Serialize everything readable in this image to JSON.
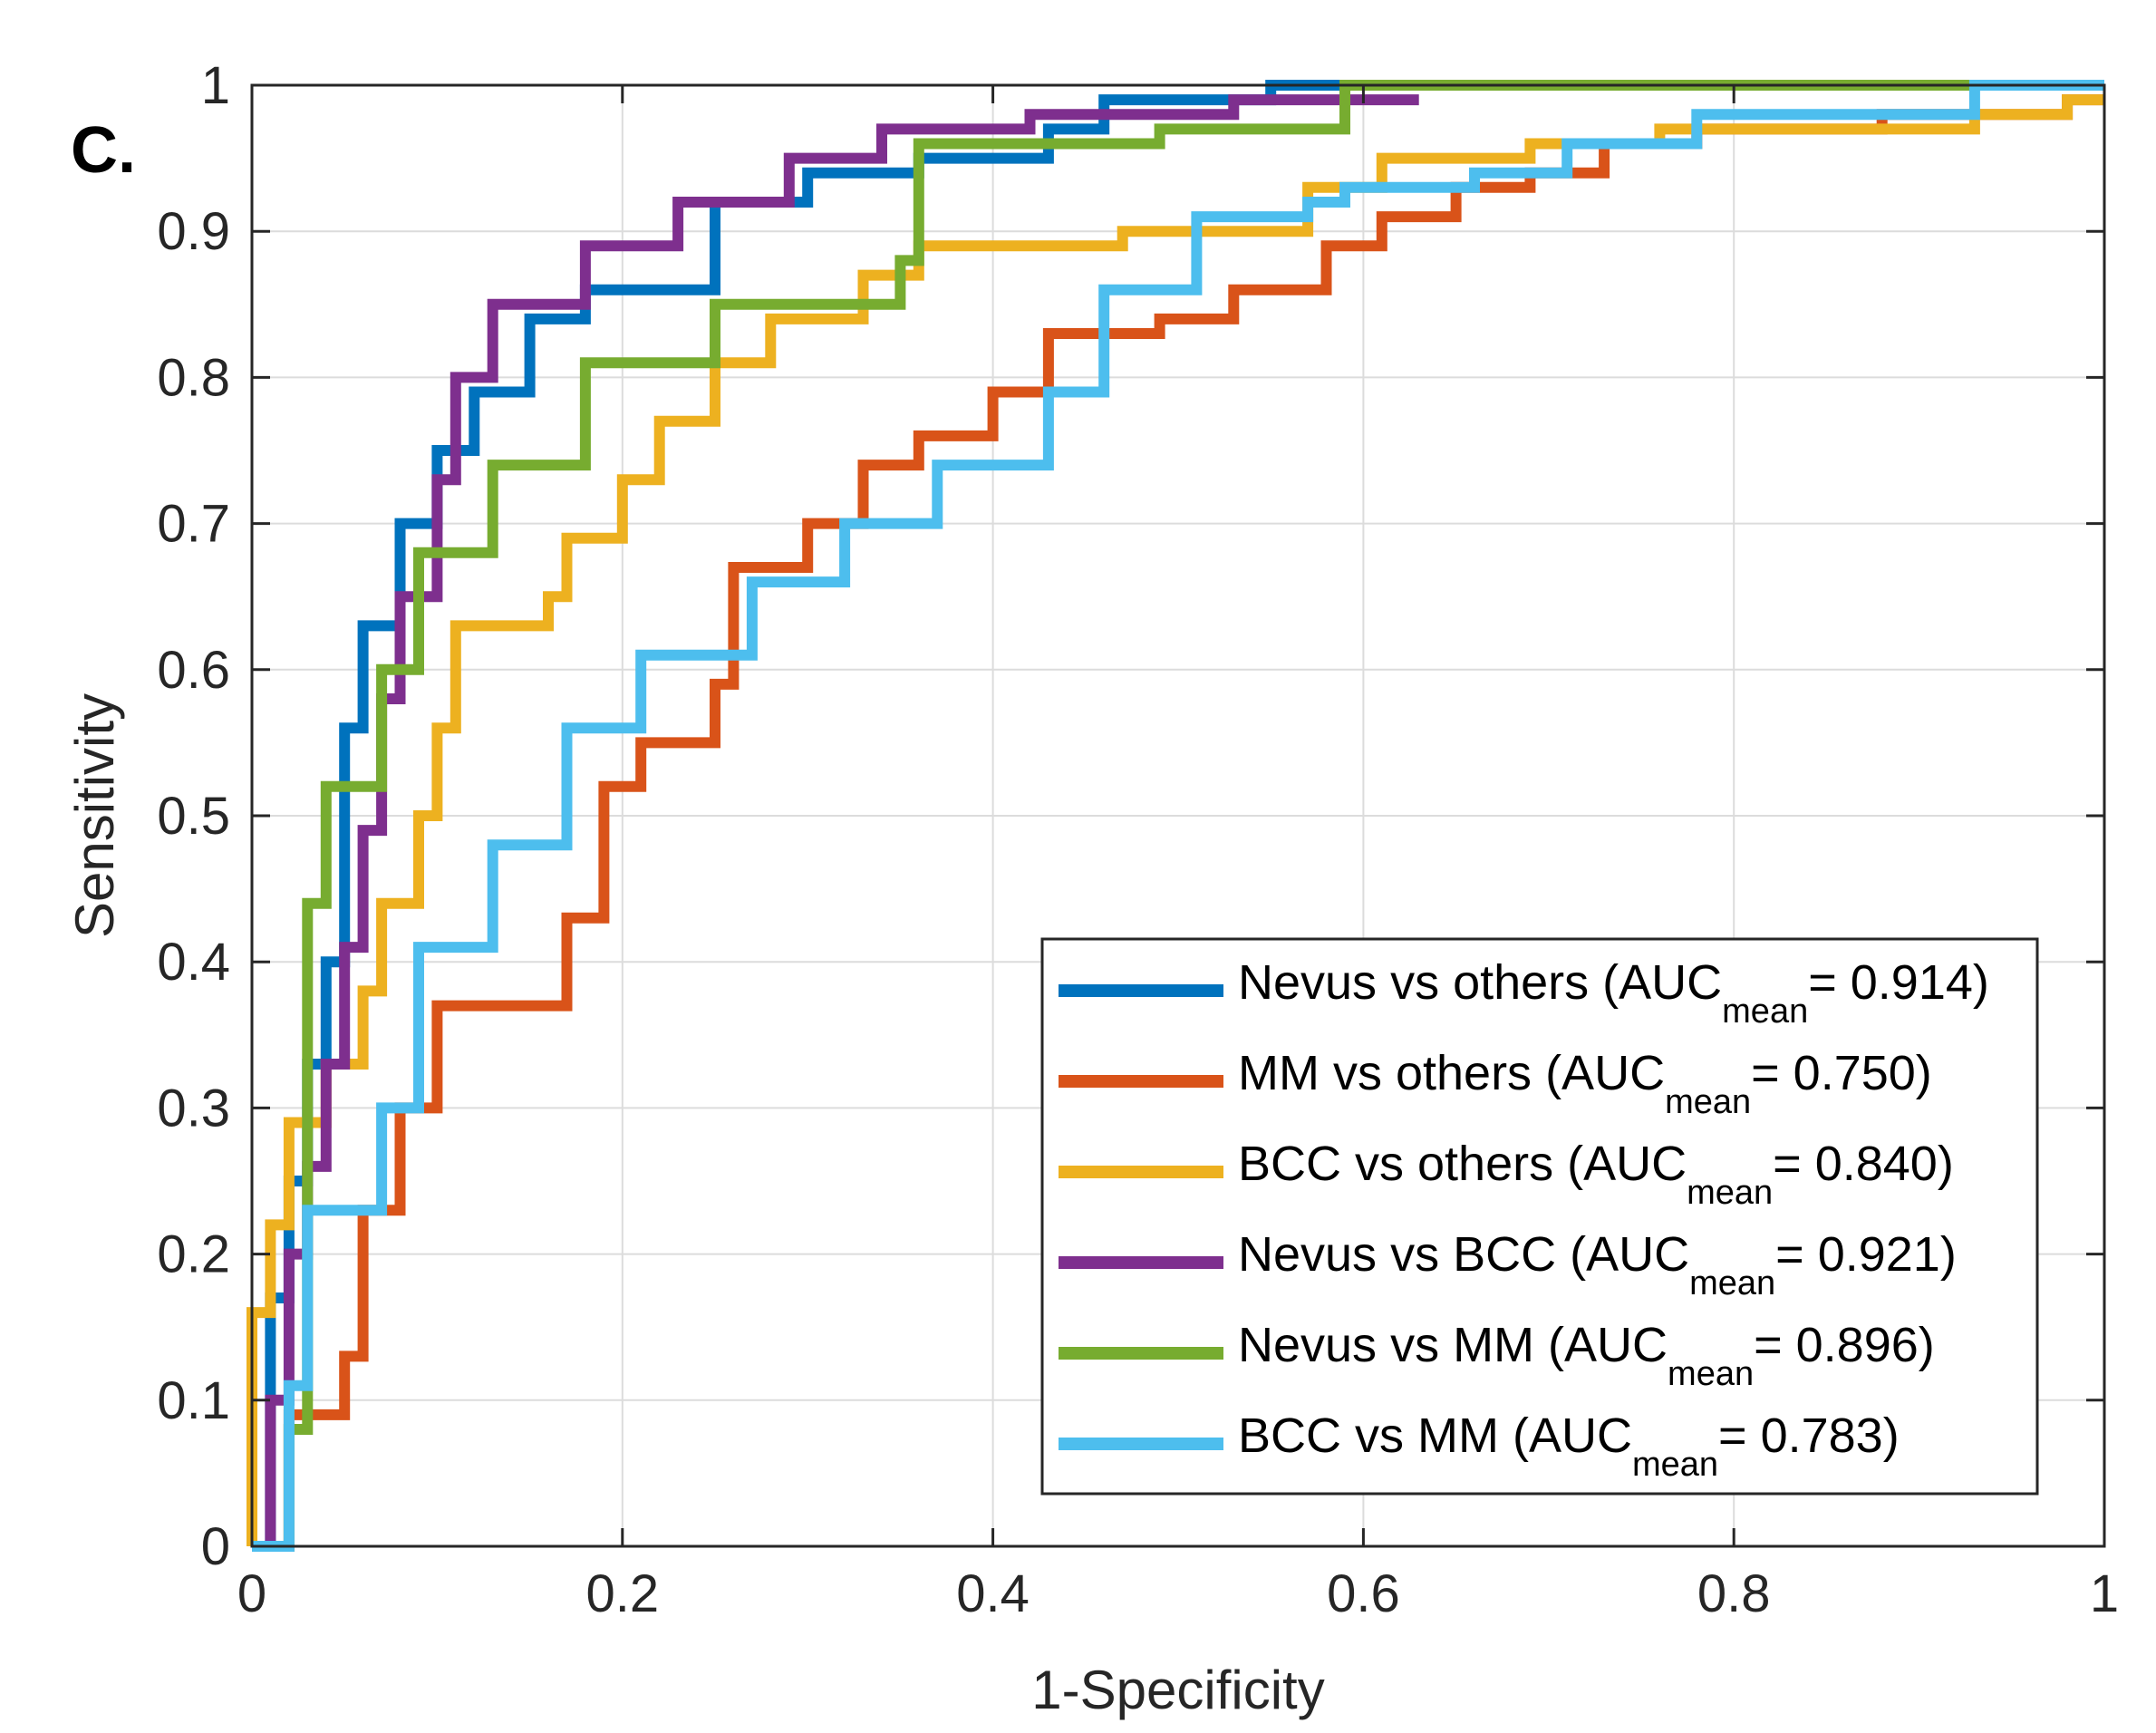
{
  "panel_label": "C.",
  "chart_data": {
    "type": "line",
    "title": "",
    "xlabel": "1-Specificity",
    "ylabel": "Sensitivity",
    "xlim": [
      0,
      1
    ],
    "ylim": [
      0,
      1
    ],
    "xticks": [
      "0",
      "0.2",
      "0.4",
      "0.6",
      "0.8",
      "1"
    ],
    "yticks": [
      "0",
      "0.1",
      "0.2",
      "0.3",
      "0.4",
      "0.5",
      "0.6",
      "0.7",
      "0.8",
      "0.9",
      "1"
    ],
    "grid": true,
    "legend_position": "bottom-right",
    "series": [
      {
        "name": "Nevus vs others",
        "auc_label": "AUC",
        "auc_sub": "mean",
        "auc_value": "= 0.914)",
        "color": "#0072BD",
        "points": [
          [
            0,
            0
          ],
          [
            0.01,
            0
          ],
          [
            0.01,
            0.17
          ],
          [
            0.02,
            0.17
          ],
          [
            0.02,
            0.25
          ],
          [
            0.03,
            0.25
          ],
          [
            0.03,
            0.33
          ],
          [
            0.04,
            0.33
          ],
          [
            0.04,
            0.4
          ],
          [
            0.05,
            0.4
          ],
          [
            0.05,
            0.56
          ],
          [
            0.06,
            0.56
          ],
          [
            0.06,
            0.63
          ],
          [
            0.08,
            0.63
          ],
          [
            0.08,
            0.7
          ],
          [
            0.1,
            0.7
          ],
          [
            0.1,
            0.75
          ],
          [
            0.12,
            0.75
          ],
          [
            0.12,
            0.79
          ],
          [
            0.15,
            0.79
          ],
          [
            0.15,
            0.84
          ],
          [
            0.18,
            0.84
          ],
          [
            0.18,
            0.86
          ],
          [
            0.25,
            0.86
          ],
          [
            0.25,
            0.92
          ],
          [
            0.3,
            0.92
          ],
          [
            0.3,
            0.94
          ],
          [
            0.36,
            0.94
          ],
          [
            0.36,
            0.95
          ],
          [
            0.43,
            0.95
          ],
          [
            0.43,
            0.97
          ],
          [
            0.46,
            0.97
          ],
          [
            0.46,
            0.99
          ],
          [
            0.55,
            0.99
          ],
          [
            0.55,
            1
          ],
          [
            1,
            1
          ]
        ]
      },
      {
        "name": "MM vs others",
        "auc_label": "AUC",
        "auc_sub": "mean",
        "auc_value": "= 0.750)",
        "color": "#D95319",
        "points": [
          [
            0,
            0
          ],
          [
            0.02,
            0
          ],
          [
            0.02,
            0.09
          ],
          [
            0.05,
            0.09
          ],
          [
            0.05,
            0.13
          ],
          [
            0.06,
            0.13
          ],
          [
            0.06,
            0.23
          ],
          [
            0.08,
            0.23
          ],
          [
            0.08,
            0.3
          ],
          [
            0.1,
            0.3
          ],
          [
            0.1,
            0.37
          ],
          [
            0.17,
            0.37
          ],
          [
            0.17,
            0.43
          ],
          [
            0.19,
            0.43
          ],
          [
            0.19,
            0.52
          ],
          [
            0.21,
            0.52
          ],
          [
            0.21,
            0.55
          ],
          [
            0.25,
            0.55
          ],
          [
            0.25,
            0.59
          ],
          [
            0.26,
            0.59
          ],
          [
            0.26,
            0.67
          ],
          [
            0.3,
            0.67
          ],
          [
            0.3,
            0.7
          ],
          [
            0.33,
            0.7
          ],
          [
            0.33,
            0.74
          ],
          [
            0.36,
            0.74
          ],
          [
            0.36,
            0.76
          ],
          [
            0.4,
            0.76
          ],
          [
            0.4,
            0.79
          ],
          [
            0.43,
            0.79
          ],
          [
            0.43,
            0.83
          ],
          [
            0.49,
            0.83
          ],
          [
            0.49,
            0.84
          ],
          [
            0.53,
            0.84
          ],
          [
            0.53,
            0.86
          ],
          [
            0.58,
            0.86
          ],
          [
            0.58,
            0.89
          ],
          [
            0.61,
            0.89
          ],
          [
            0.61,
            0.91
          ],
          [
            0.65,
            0.91
          ],
          [
            0.65,
            0.93
          ],
          [
            0.69,
            0.93
          ],
          [
            0.69,
            0.94
          ],
          [
            0.73,
            0.94
          ],
          [
            0.73,
            0.96
          ],
          [
            0.78,
            0.96
          ],
          [
            0.78,
            0.97
          ],
          [
            0.88,
            0.97
          ],
          [
            0.88,
            0.98
          ],
          [
            0.98,
            0.98
          ],
          [
            0.98,
            0.99
          ],
          [
            1,
            0.99
          ]
        ]
      },
      {
        "name": "BCC vs others",
        "auc_label": "AUC",
        "auc_sub": "mean",
        "auc_value": "= 0.840)",
        "color": "#EDB120",
        "points": [
          [
            0,
            0
          ],
          [
            0,
            0.16
          ],
          [
            0.01,
            0.16
          ],
          [
            0.01,
            0.22
          ],
          [
            0.02,
            0.22
          ],
          [
            0.02,
            0.29
          ],
          [
            0.04,
            0.29
          ],
          [
            0.04,
            0.33
          ],
          [
            0.06,
            0.33
          ],
          [
            0.06,
            0.38
          ],
          [
            0.07,
            0.38
          ],
          [
            0.07,
            0.44
          ],
          [
            0.09,
            0.44
          ],
          [
            0.09,
            0.5
          ],
          [
            0.1,
            0.5
          ],
          [
            0.1,
            0.56
          ],
          [
            0.11,
            0.56
          ],
          [
            0.11,
            0.63
          ],
          [
            0.16,
            0.63
          ],
          [
            0.16,
            0.65
          ],
          [
            0.17,
            0.65
          ],
          [
            0.17,
            0.69
          ],
          [
            0.2,
            0.69
          ],
          [
            0.2,
            0.73
          ],
          [
            0.22,
            0.73
          ],
          [
            0.22,
            0.77
          ],
          [
            0.25,
            0.77
          ],
          [
            0.25,
            0.81
          ],
          [
            0.28,
            0.81
          ],
          [
            0.28,
            0.84
          ],
          [
            0.33,
            0.84
          ],
          [
            0.33,
            0.87
          ],
          [
            0.36,
            0.87
          ],
          [
            0.36,
            0.89
          ],
          [
            0.47,
            0.89
          ],
          [
            0.47,
            0.9
          ],
          [
            0.57,
            0.9
          ],
          [
            0.57,
            0.93
          ],
          [
            0.61,
            0.93
          ],
          [
            0.61,
            0.95
          ],
          [
            0.69,
            0.95
          ],
          [
            0.69,
            0.96
          ],
          [
            0.76,
            0.96
          ],
          [
            0.76,
            0.97
          ],
          [
            0.93,
            0.97
          ],
          [
            0.93,
            0.98
          ],
          [
            0.98,
            0.98
          ],
          [
            0.98,
            0.99
          ],
          [
            1,
            0.99
          ]
        ]
      },
      {
        "name": "Nevus vs BCC",
        "auc_label": "AUC",
        "auc_sub": "mean",
        "auc_value": "= 0.921)",
        "color": "#7E2F8E",
        "points": [
          [
            0,
            0
          ],
          [
            0.01,
            0
          ],
          [
            0.01,
            0.1
          ],
          [
            0.02,
            0.1
          ],
          [
            0.02,
            0.2
          ],
          [
            0.03,
            0.2
          ],
          [
            0.03,
            0.26
          ],
          [
            0.04,
            0.26
          ],
          [
            0.04,
            0.33
          ],
          [
            0.05,
            0.33
          ],
          [
            0.05,
            0.41
          ],
          [
            0.06,
            0.41
          ],
          [
            0.06,
            0.49
          ],
          [
            0.07,
            0.49
          ],
          [
            0.07,
            0.58
          ],
          [
            0.08,
            0.58
          ],
          [
            0.08,
            0.65
          ],
          [
            0.1,
            0.65
          ],
          [
            0.1,
            0.73
          ],
          [
            0.11,
            0.73
          ],
          [
            0.11,
            0.8
          ],
          [
            0.13,
            0.8
          ],
          [
            0.13,
            0.85
          ],
          [
            0.18,
            0.85
          ],
          [
            0.18,
            0.89
          ],
          [
            0.23,
            0.89
          ],
          [
            0.23,
            0.92
          ],
          [
            0.29,
            0.92
          ],
          [
            0.29,
            0.95
          ],
          [
            0.34,
            0.95
          ],
          [
            0.34,
            0.97
          ],
          [
            0.42,
            0.97
          ],
          [
            0.42,
            0.98
          ],
          [
            0.53,
            0.98
          ],
          [
            0.53,
            0.99
          ],
          [
            0.63,
            0.99
          ]
        ]
      },
      {
        "name": "Nevus vs MM",
        "auc_label": "AUC",
        "auc_sub": "mean",
        "auc_value": "= 0.896)",
        "color": "#77AC30",
        "points": [
          [
            0,
            0
          ],
          [
            0.02,
            0
          ],
          [
            0.02,
            0.08
          ],
          [
            0.03,
            0.08
          ],
          [
            0.03,
            0.44
          ],
          [
            0.04,
            0.44
          ],
          [
            0.04,
            0.52
          ],
          [
            0.07,
            0.52
          ],
          [
            0.07,
            0.6
          ],
          [
            0.09,
            0.6
          ],
          [
            0.09,
            0.68
          ],
          [
            0.13,
            0.68
          ],
          [
            0.13,
            0.74
          ],
          [
            0.18,
            0.74
          ],
          [
            0.18,
            0.81
          ],
          [
            0.25,
            0.81
          ],
          [
            0.25,
            0.85
          ],
          [
            0.35,
            0.85
          ],
          [
            0.35,
            0.88
          ],
          [
            0.36,
            0.88
          ],
          [
            0.36,
            0.96
          ],
          [
            0.49,
            0.96
          ],
          [
            0.49,
            0.97
          ],
          [
            0.59,
            0.97
          ],
          [
            0.59,
            1
          ],
          [
            0.93,
            1
          ]
        ]
      },
      {
        "name": "BCC vs MM",
        "auc_label": "AUC",
        "auc_sub": "mean",
        "auc_value": "= 0.783)",
        "color": "#4DBEEE",
        "points": [
          [
            0,
            0
          ],
          [
            0.02,
            0
          ],
          [
            0.02,
            0.11
          ],
          [
            0.03,
            0.11
          ],
          [
            0.03,
            0.23
          ],
          [
            0.07,
            0.23
          ],
          [
            0.07,
            0.3
          ],
          [
            0.09,
            0.3
          ],
          [
            0.09,
            0.41
          ],
          [
            0.13,
            0.41
          ],
          [
            0.13,
            0.48
          ],
          [
            0.17,
            0.48
          ],
          [
            0.17,
            0.56
          ],
          [
            0.21,
            0.56
          ],
          [
            0.21,
            0.61
          ],
          [
            0.27,
            0.61
          ],
          [
            0.27,
            0.66
          ],
          [
            0.32,
            0.66
          ],
          [
            0.32,
            0.7
          ],
          [
            0.37,
            0.7
          ],
          [
            0.37,
            0.74
          ],
          [
            0.43,
            0.74
          ],
          [
            0.43,
            0.79
          ],
          [
            0.46,
            0.79
          ],
          [
            0.46,
            0.86
          ],
          [
            0.51,
            0.86
          ],
          [
            0.51,
            0.91
          ],
          [
            0.57,
            0.91
          ],
          [
            0.57,
            0.92
          ],
          [
            0.59,
            0.92
          ],
          [
            0.59,
            0.93
          ],
          [
            0.66,
            0.93
          ],
          [
            0.66,
            0.94
          ],
          [
            0.71,
            0.94
          ],
          [
            0.71,
            0.96
          ],
          [
            0.78,
            0.96
          ],
          [
            0.78,
            0.98
          ],
          [
            0.93,
            0.98
          ],
          [
            0.93,
            1
          ],
          [
            1,
            1
          ]
        ]
      }
    ]
  }
}
